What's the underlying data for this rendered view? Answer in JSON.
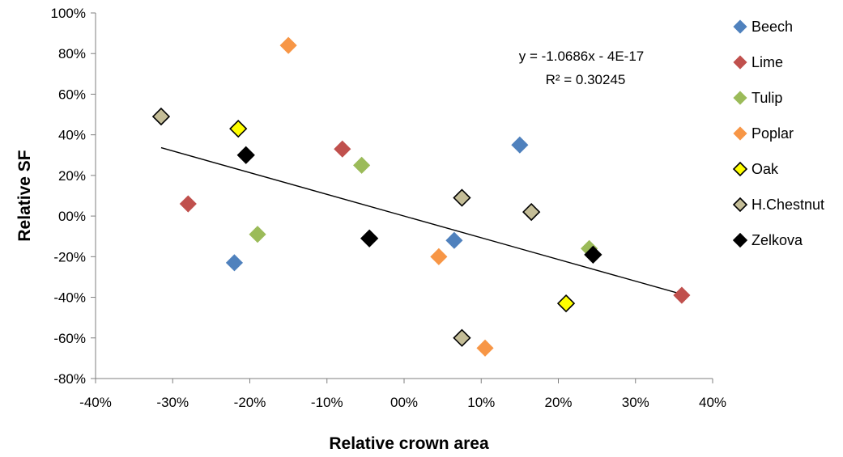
{
  "chart_data": {
    "type": "scatter",
    "title": "",
    "xlabel": "Relative crown area",
    "ylabel": "Relative SF",
    "xlim": [
      -0.4,
      0.4
    ],
    "ylim": [
      -0.8,
      1.0
    ],
    "x_ticks": [
      {
        "value": -0.4,
        "label": "-40%"
      },
      {
        "value": -0.3,
        "label": "-30%"
      },
      {
        "value": -0.2,
        "label": "-20%"
      },
      {
        "value": -0.1,
        "label": "-10%"
      },
      {
        "value": 0.0,
        "label": "00%"
      },
      {
        "value": 0.1,
        "label": "10%"
      },
      {
        "value": 0.2,
        "label": "20%"
      },
      {
        "value": 0.3,
        "label": "30%"
      },
      {
        "value": 0.4,
        "label": "40%"
      }
    ],
    "y_ticks": [
      {
        "value": 1.0,
        "label": "100%"
      },
      {
        "value": 0.8,
        "label": "80%"
      },
      {
        "value": 0.6,
        "label": "60%"
      },
      {
        "value": 0.4,
        "label": "40%"
      },
      {
        "value": 0.2,
        "label": "20%"
      },
      {
        "value": 0.0,
        "label": "00%"
      },
      {
        "value": -0.2,
        "label": "-20%"
      },
      {
        "value": -0.4,
        "label": "-40%"
      },
      {
        "value": -0.6,
        "label": "-60%"
      },
      {
        "value": -0.8,
        "label": "-80%"
      }
    ],
    "grid": false,
    "legend_position": "right",
    "series": [
      {
        "name": "Beech",
        "color": "#4f81bd",
        "outlined": false,
        "points": [
          [
            -0.22,
            -0.23
          ],
          [
            0.15,
            0.35
          ],
          [
            0.065,
            -0.12
          ]
        ]
      },
      {
        "name": "Lime",
        "color": "#c0504d",
        "outlined": false,
        "points": [
          [
            -0.28,
            0.06
          ],
          [
            -0.08,
            0.33
          ],
          [
            0.36,
            -0.39
          ]
        ]
      },
      {
        "name": "Tulip",
        "color": "#9bbb59",
        "outlined": false,
        "points": [
          [
            -0.19,
            -0.09
          ],
          [
            -0.055,
            0.25
          ],
          [
            0.24,
            -0.16
          ]
        ]
      },
      {
        "name": "Poplar",
        "color": "#f79646",
        "outlined": false,
        "points": [
          [
            -0.15,
            0.84
          ],
          [
            0.045,
            -0.2
          ],
          [
            0.105,
            -0.65
          ]
        ]
      },
      {
        "name": "Oak",
        "color": "#ffff00",
        "outlined": true,
        "points": [
          [
            -0.215,
            0.43
          ],
          [
            0.21,
            -0.43
          ]
        ]
      },
      {
        "name": "H.Chestnut",
        "color": "#c4bd97",
        "outlined": true,
        "points": [
          [
            -0.315,
            0.49
          ],
          [
            0.075,
            0.09
          ],
          [
            0.165,
            0.02
          ],
          [
            0.075,
            -0.6
          ]
        ]
      },
      {
        "name": "Zelkova",
        "color": "#000000",
        "outlined": true,
        "points": [
          [
            -0.205,
            0.3
          ],
          [
            -0.045,
            -0.11
          ],
          [
            0.245,
            -0.19
          ]
        ]
      }
    ],
    "trendline": {
      "equation": "y = -1.0686x - 4E-17",
      "r_squared": "R² = 0.30245",
      "slope": -1.0686,
      "intercept": 0,
      "x_range": [
        -0.315,
        0.36
      ]
    }
  }
}
